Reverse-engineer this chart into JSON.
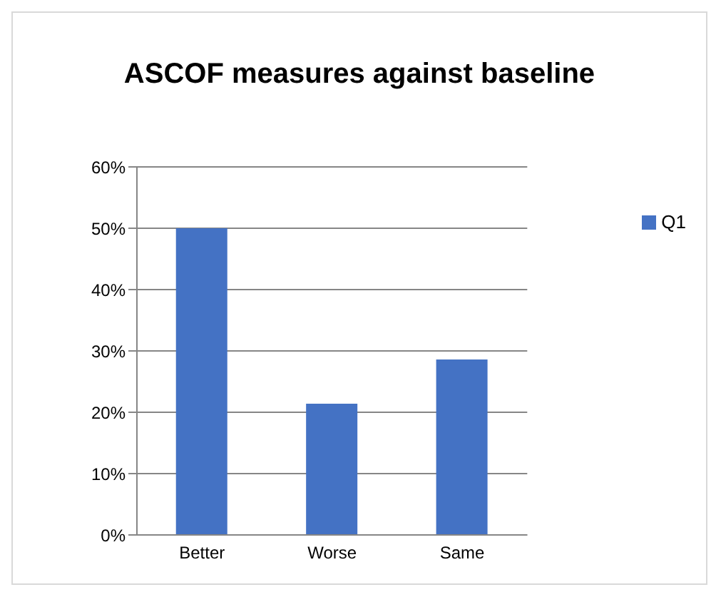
{
  "chart_data": {
    "type": "bar",
    "title": "ASCOF measures against baseline",
    "categories": [
      "Better",
      "Worse",
      "Same"
    ],
    "series": [
      {
        "name": "Q1",
        "color": "#4472c4",
        "values": [
          50,
          21.4,
          28.6
        ]
      }
    ],
    "ylim": [
      0,
      60
    ],
    "yticks": [
      {
        "value": 0,
        "label": "0%"
      },
      {
        "value": 10,
        "label": "10%"
      },
      {
        "value": 20,
        "label": "20%"
      },
      {
        "value": 30,
        "label": "30%"
      },
      {
        "value": 40,
        "label": "40%"
      },
      {
        "value": 50,
        "label": "50%"
      },
      {
        "value": 60,
        "label": "60%"
      }
    ],
    "grid": "y",
    "legend": "right"
  }
}
